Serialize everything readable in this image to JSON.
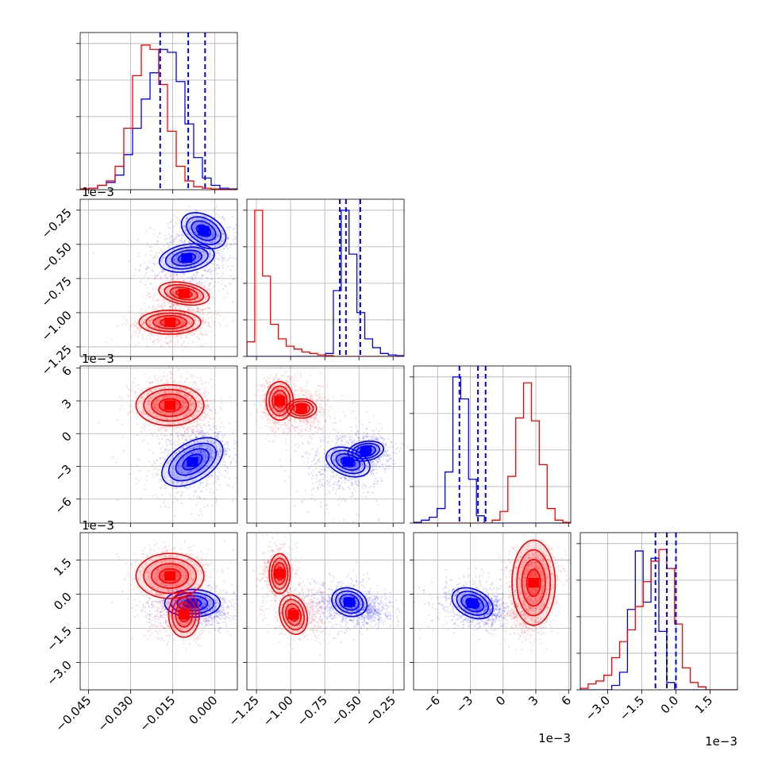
{
  "chart_data": {
    "type": "corner",
    "description_free": true,
    "colors": {
      "series_a": "#0000ff",
      "series_b": "#ff0000"
    },
    "grid": true,
    "parameters": [
      {
        "id": "p0",
        "range": [
          -0.048,
          0.008
        ],
        "ticks": [
          -0.045,
          -0.03,
          -0.015,
          0.0
        ],
        "tick_labels": [
          "−0.045",
          "−0.030",
          "−0.015",
          "0.000"
        ],
        "offset_label": ""
      },
      {
        "id": "p1",
        "range": [
          -1.32,
          -0.17
        ],
        "ticks": [
          -1.25,
          -1.0,
          -0.75,
          -0.5,
          -0.25
        ],
        "tick_labels": [
          "−1.25",
          "−1.00",
          "−0.75",
          "−0.50",
          "−0.25"
        ],
        "offset_label": "1e−3"
      },
      {
        "id": "p2",
        "range": [
          -8.2,
          6.2
        ],
        "ticks": [
          -6,
          -3,
          0,
          3,
          6
        ],
        "tick_labels": [
          "−6",
          "−3",
          "0",
          "3",
          "6"
        ],
        "offset_label": "1e−3"
      },
      {
        "id": "p3",
        "range": [
          -4.2,
          2.7
        ],
        "ticks": [
          -3.0,
          -1.5,
          0.0,
          1.5
        ],
        "tick_labels": [
          "−3.0",
          "−1.5",
          "0.0",
          "1.5"
        ],
        "offset_label": "1e−3"
      }
    ],
    "quantiles": {
      "series_a": [
        [
          -0.0195,
          -0.0095,
          -0.0035
        ],
        [
          -0.64,
          -0.595,
          -0.49
        ],
        [
          -4.0,
          -2.3,
          -1.6
        ],
        [
          -0.9,
          -0.4,
          0.0
        ]
      ]
    },
    "histograms": {
      "series_a": [
        [
          0.005,
          0.01,
          0.03,
          0.05,
          0.1,
          0.24,
          0.42,
          0.62,
          0.8,
          0.96,
          0.94,
          0.74,
          0.45,
          0.22,
          0.08,
          0.03,
          0.01,
          0.005
        ],
        [
          0,
          0,
          0,
          0,
          0,
          0,
          0,
          0,
          0,
          0,
          0.02,
          0.45,
          1.0,
          0.7,
          0.3,
          0.12,
          0.06,
          0.02,
          0.01,
          0.005
        ],
        [
          0.005,
          0.02,
          0.04,
          0.1,
          0.35,
          1.0,
          0.85,
          0.3,
          0.05,
          0,
          0,
          0,
          0,
          0,
          0,
          0,
          0,
          0,
          0,
          0
        ],
        [
          0,
          0,
          0,
          0,
          0.03,
          0.12,
          0.55,
          0.95,
          0.6,
          0.9,
          0.4,
          0.05,
          0,
          0,
          0,
          0,
          0,
          0,
          0,
          0
        ]
      ],
      "series_b": [
        [
          0.005,
          0.01,
          0.03,
          0.06,
          0.16,
          0.42,
          0.78,
          0.99,
          0.96,
          0.72,
          0.4,
          0.16,
          0.06,
          0.02,
          0.01,
          0.005,
          0.002,
          0.001
        ],
        [
          0.1,
          1.0,
          0.55,
          0.22,
          0.12,
          0.07,
          0.05,
          0.03,
          0.02,
          0.01,
          0.005,
          0,
          0,
          0,
          0,
          0,
          0,
          0,
          0,
          0
        ],
        [
          0,
          0,
          0,
          0,
          0,
          0,
          0,
          0,
          0,
          0,
          0.02,
          0.08,
          0.32,
          0.72,
          0.96,
          0.7,
          0.4,
          0.1,
          0.02,
          0.005
        ],
        [
          0.01,
          0.04,
          0.06,
          0.1,
          0.22,
          0.33,
          0.41,
          0.57,
          0.74,
          0.88,
          0.96,
          0.83,
          0.45,
          0.15,
          0.05,
          0.02,
          0,
          0,
          0,
          0
        ]
      ]
    },
    "clusters": {
      "series_a": [
        {
          "mean": [
            -0.009,
            -0.63,
            -3.0,
            -0.4
          ],
          "std": [
            0.0085,
            0.14,
            1.8,
            0.55
          ]
        },
        {
          "mean": [
            -0.004,
            -0.44,
            -1.6,
            -0.7
          ],
          "std": [
            0.005,
            0.09,
            0.9,
            0.35
          ]
        }
      ],
      "series_b": [
        {
          "mean": [
            -0.016,
            -1.09,
            2.9,
            1.0
          ],
          "std": [
            0.007,
            0.06,
            1.3,
            0.55
          ]
        },
        {
          "mean": [
            -0.012,
            -0.93,
            2.2,
            -0.8
          ],
          "std": [
            0.006,
            0.12,
            1.2,
            0.6
          ]
        }
      ]
    },
    "contours": {
      "series_a": [
        {
          "row": 1,
          "col": 0,
          "shapes": [
            {
              "mean": [
                -0.01,
                -0.6
              ],
              "radius": [
                0.009,
                0.09
              ],
              "angle": 10
            },
            {
              "mean": [
                -0.004,
                -0.4
              ],
              "radius": [
                0.005,
                0.16
              ],
              "angle": 60
            }
          ]
        },
        {
          "row": 2,
          "col": 0,
          "shapes": [
            {
              "mean": [
                -0.008,
                -2.6
              ],
              "radius": [
                0.011,
                1.6
              ],
              "angle": 32
            }
          ]
        },
        {
          "row": 2,
          "col": 1,
          "shapes": [
            {
              "mean": [
                -0.58,
                -2.6
              ],
              "radius": [
                0.09,
                1.9
              ],
              "angle": 70
            },
            {
              "mean": [
                -0.45,
                -1.6
              ],
              "radius": [
                0.12,
                0.8
              ],
              "angle": 10
            }
          ]
        },
        {
          "row": 3,
          "col": 0,
          "shapes": [
            {
              "mean": [
                -0.008,
                -0.4
              ],
              "radius": [
                0.009,
                0.55
              ],
              "angle": 0
            }
          ]
        },
        {
          "row": 3,
          "col": 1,
          "shapes": [
            {
              "mean": [
                -0.57,
                -0.35
              ],
              "radius": [
                0.12,
                0.55
              ],
              "angle": -20
            }
          ]
        },
        {
          "row": 3,
          "col": 2,
          "shapes": [
            {
              "mean": [
                -2.8,
                -0.4
              ],
              "radius": [
                1.8,
                0.55
              ],
              "angle": -25
            }
          ]
        }
      ],
      "series_b": [
        {
          "row": 1,
          "col": 0,
          "shapes": [
            {
              "mean": [
                -0.016,
                -1.07
              ],
              "radius": [
                0.01,
                0.08
              ],
              "angle": 0
            },
            {
              "mean": [
                -0.011,
                -0.86
              ],
              "radius": [
                0.0035,
                0.17
              ],
              "angle": 80
            }
          ]
        },
        {
          "row": 2,
          "col": 0,
          "shapes": [
            {
              "mean": [
                -0.016,
                2.6
              ],
              "radius": [
                0.011,
                1.7
              ],
              "angle": 0
            }
          ]
        },
        {
          "row": 2,
          "col": 1,
          "shapes": [
            {
              "mean": [
                -1.08,
                3.0
              ],
              "radius": [
                0.09,
                1.6
              ],
              "angle": 0
            },
            {
              "mean": [
                -0.92,
                2.3
              ],
              "radius": [
                0.1,
                0.8
              ],
              "angle": 0
            }
          ]
        },
        {
          "row": 3,
          "col": 0,
          "shapes": [
            {
              "mean": [
                -0.016,
                0.8
              ],
              "radius": [
                0.011,
                0.9
              ],
              "angle": 0
            },
            {
              "mean": [
                -0.011,
                -0.9
              ],
              "radius": [
                0.005,
                0.9
              ],
              "angle": 0
            }
          ]
        },
        {
          "row": 3,
          "col": 1,
          "shapes": [
            {
              "mean": [
                -1.08,
                0.9
              ],
              "radius": [
                0.07,
                0.8
              ],
              "angle": 0
            },
            {
              "mean": [
                -0.98,
                -0.9
              ],
              "radius": [
                0.09,
                0.8
              ],
              "angle": 15
            }
          ]
        },
        {
          "row": 3,
          "col": 2,
          "shapes": [
            {
              "mean": [
                2.8,
                0.5
              ],
              "radius": [
                1.8,
                1.7
              ],
              "angle": 0
            }
          ]
        }
      ]
    }
  }
}
